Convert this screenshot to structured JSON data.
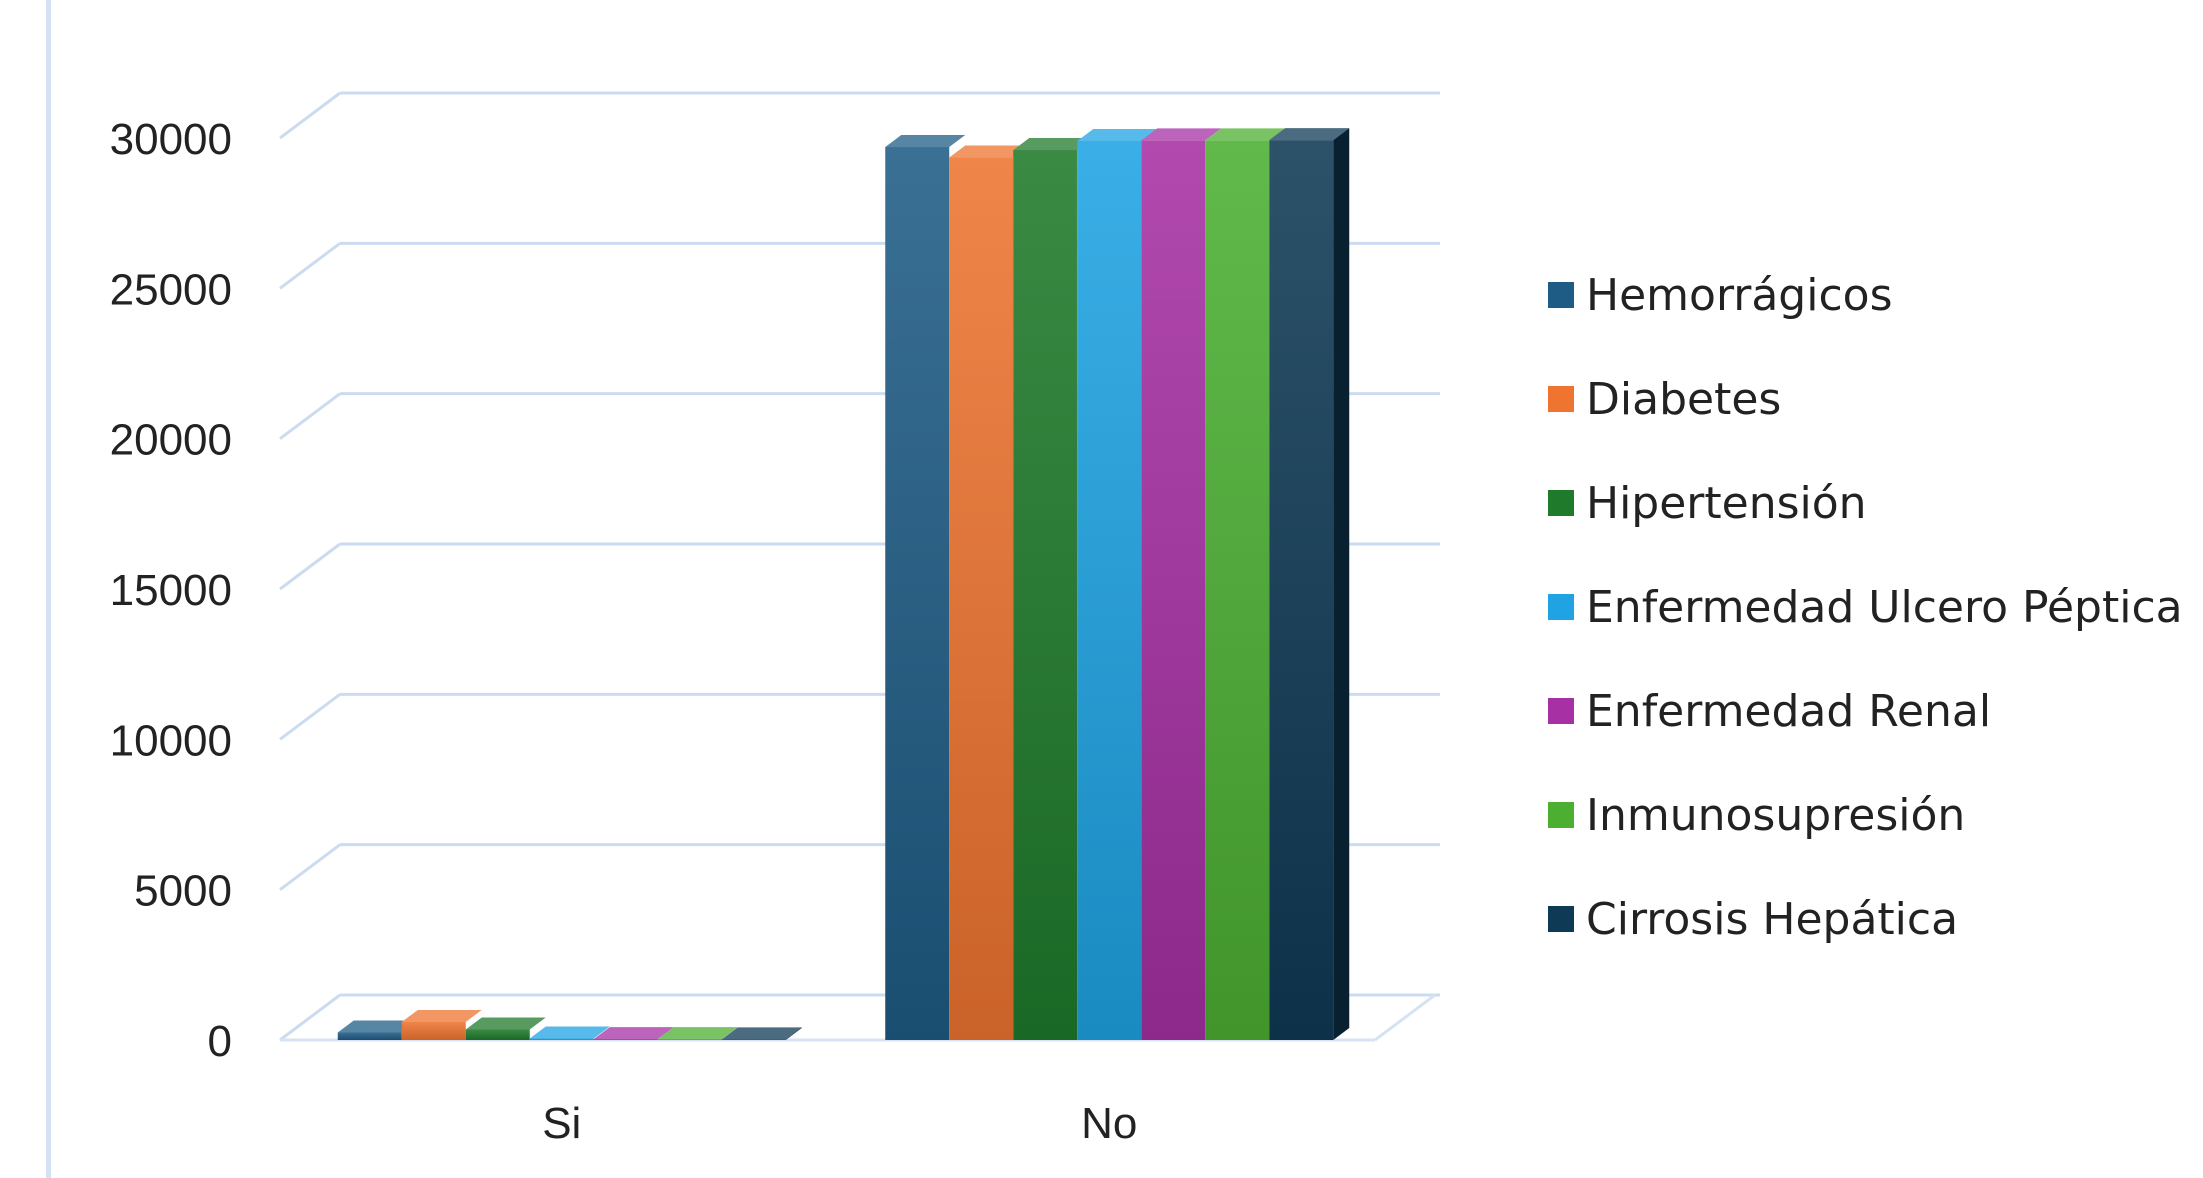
{
  "chart_data": {
    "type": "bar",
    "title": "",
    "xlabel": "",
    "ylabel": "",
    "ylim": [
      0,
      30000
    ],
    "yticks": [
      0,
      5000,
      10000,
      15000,
      20000,
      25000,
      30000
    ],
    "ytick_labels": [
      "0",
      "5000",
      "10000",
      "15000",
      "20000",
      "25000",
      "30000"
    ],
    "categories": [
      "Si",
      "No"
    ],
    "grid": true,
    "legend_position": "right",
    "series": [
      {
        "name": "Hemorrágicos",
        "color": "#1f5c85",
        "values": [
          250,
          29700
        ]
      },
      {
        "name": "Diabetes",
        "color": "#ee7430",
        "values": [
          600,
          29350
        ]
      },
      {
        "name": "Hipertensión",
        "color": "#1f7a2b",
        "values": [
          350,
          29600
        ]
      },
      {
        "name": "Enfermedad Ulcero Péptica",
        "color": "#1fa3e3",
        "values": [
          50,
          29900
        ]
      },
      {
        "name": "Enfermedad Renal",
        "color": "#a630a4",
        "values": [
          30,
          29920
        ]
      },
      {
        "name": "Inmunosupresión",
        "color": "#4caf32",
        "values": [
          30,
          29920
        ]
      },
      {
        "name": "Cirrosis Hepática",
        "color": "#0f3a55",
        "values": [
          20,
          29930
        ]
      }
    ]
  }
}
